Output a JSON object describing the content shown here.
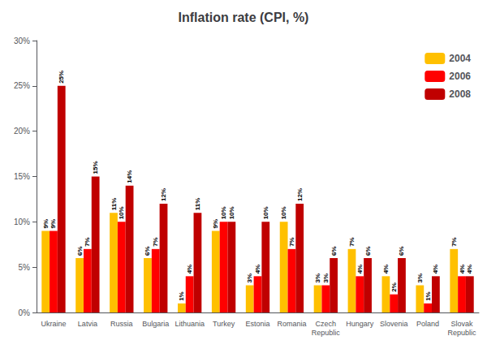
{
  "chart_data": {
    "type": "bar",
    "title": "Inflation rate (CPI, %)",
    "categories": [
      "Ukraine",
      "Latvia",
      "Russia",
      "Bulgaria",
      "Lithuania",
      "Turkey",
      "Estonia",
      "Romania",
      "Czech\nRepublic",
      "Hungary",
      "Slovenia",
      "Poland",
      "Slovak\nRepublic"
    ],
    "series": [
      {
        "name": "2004",
        "color": "#FFC000",
        "values": [
          9,
          6,
          11,
          6,
          1,
          9,
          3,
          10,
          3,
          7,
          4,
          3,
          7
        ],
        "value_labels": [
          "9%",
          "6%",
          "11%",
          "6%",
          "1%",
          "9%",
          "3%",
          "10%",
          "3%",
          "7%",
          "4%",
          "3%",
          "7%"
        ]
      },
      {
        "name": "2006",
        "color": "#FF0000",
        "values": [
          9,
          7,
          10,
          7,
          4,
          10,
          4,
          7,
          3,
          4,
          2,
          1,
          4
        ],
        "value_labels": [
          "9%",
          "7%",
          "10%",
          "7%",
          "4%",
          "10%",
          "4%",
          "7%",
          "3%",
          "4%",
          "2%",
          "1%",
          "4%"
        ]
      },
      {
        "name": "2008",
        "color": "#C00000",
        "values": [
          25,
          15,
          14,
          12,
          11,
          10,
          10,
          12,
          6,
          6,
          6,
          4,
          4
        ],
        "value_labels": [
          "25%",
          "15%",
          "14%",
          "12%",
          "11%",
          "10%",
          "10%",
          "12%",
          "6%",
          "6%",
          "6%",
          "4%",
          "4%"
        ]
      }
    ],
    "ylim": [
      0,
      30
    ],
    "yticks": [
      {
        "value": 0,
        "label": "0%"
      },
      {
        "value": 5,
        "label": "5%"
      },
      {
        "value": 10,
        "label": "10%"
      },
      {
        "value": 15,
        "label": "15%"
      },
      {
        "value": 20,
        "label": "20%"
      },
      {
        "value": 25,
        "label": "25%"
      },
      {
        "value": 30,
        "label": "30%"
      }
    ],
    "grid": false,
    "legend": "upper right",
    "data_labels": true
  }
}
